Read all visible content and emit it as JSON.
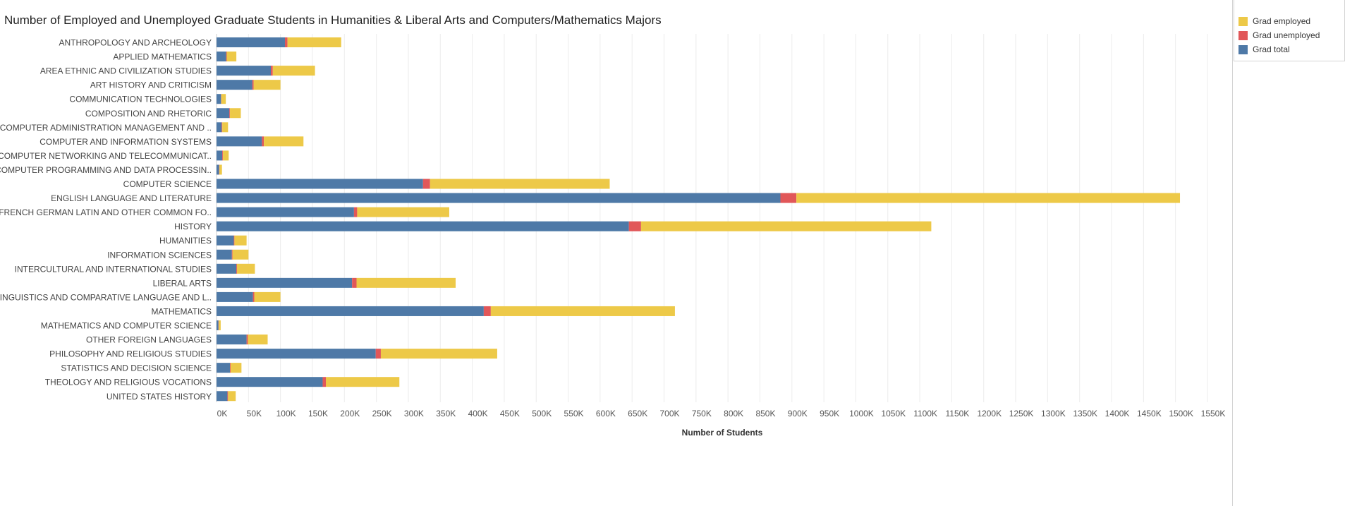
{
  "title": "Number of Employed and Unemployed Graduate Students in Humanities & Liberal Arts and Computers/Mathematics Majors",
  "colors": {
    "Grad employed": "#EDC948",
    "Grad unemployed": "#E15759",
    "Grad total": "#4E79A7"
  },
  "legend": [
    {
      "label": "Grad employed",
      "color": "#EDC948"
    },
    {
      "label": "Grad unemployed",
      "color": "#E15759"
    },
    {
      "label": "Grad total",
      "color": "#4E79A7"
    }
  ],
  "chart_data": {
    "type": "bar",
    "orientation": "horizontal",
    "stacked": true,
    "title": "Number of Employed and Unemployed Graduate Students in Humanities & Liberal Arts and Computers/Mathematics Majors",
    "xlabel": "Number of Students",
    "ylabel": "",
    "xlim": [
      0,
      1550000
    ],
    "xticks": [
      "0K",
      "50K",
      "100K",
      "150K",
      "200K",
      "250K",
      "300K",
      "350K",
      "400K",
      "450K",
      "500K",
      "550K",
      "600K",
      "650K",
      "700K",
      "750K",
      "800K",
      "850K",
      "900K",
      "950K",
      "1000K",
      "1050K",
      "1100K",
      "1150K",
      "1200K",
      "1250K",
      "1300K",
      "1350K",
      "1400K",
      "1450K",
      "1500K",
      "1550K"
    ],
    "grid": true,
    "legend_position": "top-right",
    "categories": [
      "ANTHROPOLOGY AND ARCHEOLOGY",
      "APPLIED MATHEMATICS",
      "AREA ETHNIC AND CIVILIZATION STUDIES",
      "ART HISTORY AND CRITICISM",
      "COMMUNICATION TECHNOLOGIES",
      "COMPOSITION AND RHETORIC",
      "COMPUTER ADMINISTRATION MANAGEMENT AND ..",
      "COMPUTER AND INFORMATION SYSTEMS",
      "COMPUTER NETWORKING AND TELECOMMUNICAT..",
      "COMPUTER PROGRAMMING AND DATA PROCESSIN..",
      "COMPUTER SCIENCE",
      "ENGLISH LANGUAGE AND LITERATURE",
      "FRENCH GERMAN LATIN AND OTHER COMMON FO..",
      "HISTORY",
      "HUMANITIES",
      "INFORMATION SCIENCES",
      "INTERCULTURAL AND INTERNATIONAL STUDIES",
      "LIBERAL ARTS",
      "LINGUISTICS AND COMPARATIVE LANGUAGE AND L..",
      "MATHEMATICS",
      "MATHEMATICS AND COMPUTER SCIENCE",
      "OTHER FOREIGN LANGUAGES",
      "PHILOSOPHY AND RELIGIOUS STUDIES",
      "STATISTICS AND DECISION SCIENCE",
      "THEOLOGY AND RELIGIOUS VOCATIONS",
      "UNITED STATES HISTORY"
    ],
    "series": [
      {
        "name": "Grad total",
        "values": [
          107000,
          15000,
          85000,
          56000,
          7000,
          20000,
          8000,
          71000,
          9000,
          4000,
          323000,
          882000,
          215000,
          645000,
          27000,
          24000,
          31000,
          212000,
          57000,
          418000,
          3000,
          47000,
          249000,
          21000,
          166000,
          17000
        ]
      },
      {
        "name": "Grad unemployed",
        "values": [
          4000,
          1000,
          3000,
          2000,
          500,
          1000,
          1000,
          3000,
          1000,
          500,
          11000,
          25000,
          5000,
          19000,
          1000,
          1000,
          1000,
          7000,
          2000,
          11000,
          500,
          2000,
          8000,
          1000,
          5000,
          1000
        ]
      },
      {
        "name": "Grad employed",
        "values": [
          84000,
          15000,
          66000,
          42000,
          7000,
          17000,
          9000,
          62000,
          9000,
          4000,
          281000,
          600000,
          144000,
          454000,
          19000,
          25000,
          28000,
          155000,
          41000,
          288000,
          3000,
          31000,
          182000,
          17000,
          115000,
          12000
        ]
      }
    ]
  }
}
